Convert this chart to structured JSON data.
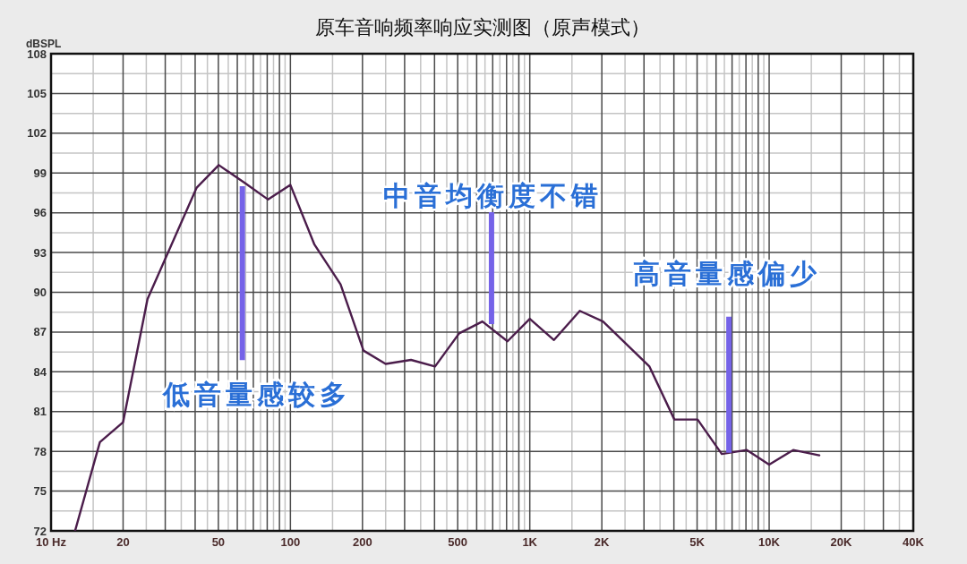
{
  "chart_data": {
    "type": "line",
    "title": "原车音响频率响应实测图（原声模式）",
    "ylabel": "dBSPL",
    "x": [
      12.6,
      16,
      20,
      25.3,
      40.6,
      50.2,
      65,
      80.7,
      100,
      126,
      162,
      202,
      250,
      319,
      402,
      507,
      634,
      807,
      1000,
      1262,
      1618,
      2023,
      3162,
      4018,
      5024,
      6340,
      8070,
      10000,
      12600,
      16200
    ],
    "series": [
      {
        "color": "#4b1d4b",
        "values": [
          72,
          78.7,
          80.2,
          89.5,
          97.9,
          99.6,
          98.2,
          97.0,
          98.1,
          93.6,
          90.6,
          85.6,
          84.6,
          84.9,
          84.4,
          86.9,
          87.8,
          86.3,
          88.0,
          86.4,
          88.6,
          87.8,
          84.4,
          80.4,
          80.4,
          77.8,
          78.1,
          77.0,
          78.1,
          77.7
        ]
      }
    ],
    "log": "x",
    "xlim": [
      10,
      40000
    ],
    "ylim": [
      72,
      108
    ],
    "xticks": [
      {
        "value": 10,
        "label": "10  Hz"
      },
      20,
      {
        "value": 30,
        "label": null
      },
      {
        "value": 40,
        "label": null
      },
      50,
      {
        "value": 60,
        "label": null
      },
      {
        "value": 70,
        "label": null
      },
      {
        "value": 80,
        "label": null
      },
      {
        "value": 90,
        "label": null
      },
      100,
      200,
      {
        "value": 300,
        "label": null
      },
      {
        "value": 400,
        "label": null
      },
      500,
      {
        "value": 600,
        "label": null
      },
      {
        "value": 700,
        "label": null
      },
      {
        "value": 800,
        "label": null
      },
      {
        "value": 900,
        "label": null
      },
      {
        "value": 1000,
        "label": "1K"
      },
      {
        "value": 2000,
        "label": "2K"
      },
      {
        "value": 3000,
        "label": null
      },
      {
        "value": 4000,
        "label": null
      },
      {
        "value": 5000,
        "label": "5K"
      },
      {
        "value": 6000,
        "label": null
      },
      {
        "value": 7000,
        "label": null
      },
      {
        "value": 8000,
        "label": null
      },
      {
        "value": 9000,
        "label": null
      },
      {
        "value": 10000,
        "label": "10K"
      },
      {
        "value": 20000,
        "label": "20K"
      },
      {
        "value": 30000,
        "label": null
      },
      {
        "value": 40000,
        "label": "40K"
      }
    ],
    "yticks": [
      72,
      75,
      78,
      81,
      84,
      87,
      90,
      93,
      96,
      99,
      102,
      105,
      108
    ],
    "grid": true,
    "annotations": [
      {
        "text": "低音量感较多",
        "x": 63,
        "y": 98.0
      },
      {
        "text": "中音均衡度不错",
        "x": 692,
        "y": 87.6
      },
      {
        "text": "高音量感偏少",
        "x": 6790,
        "y": 77.9
      }
    ]
  }
}
